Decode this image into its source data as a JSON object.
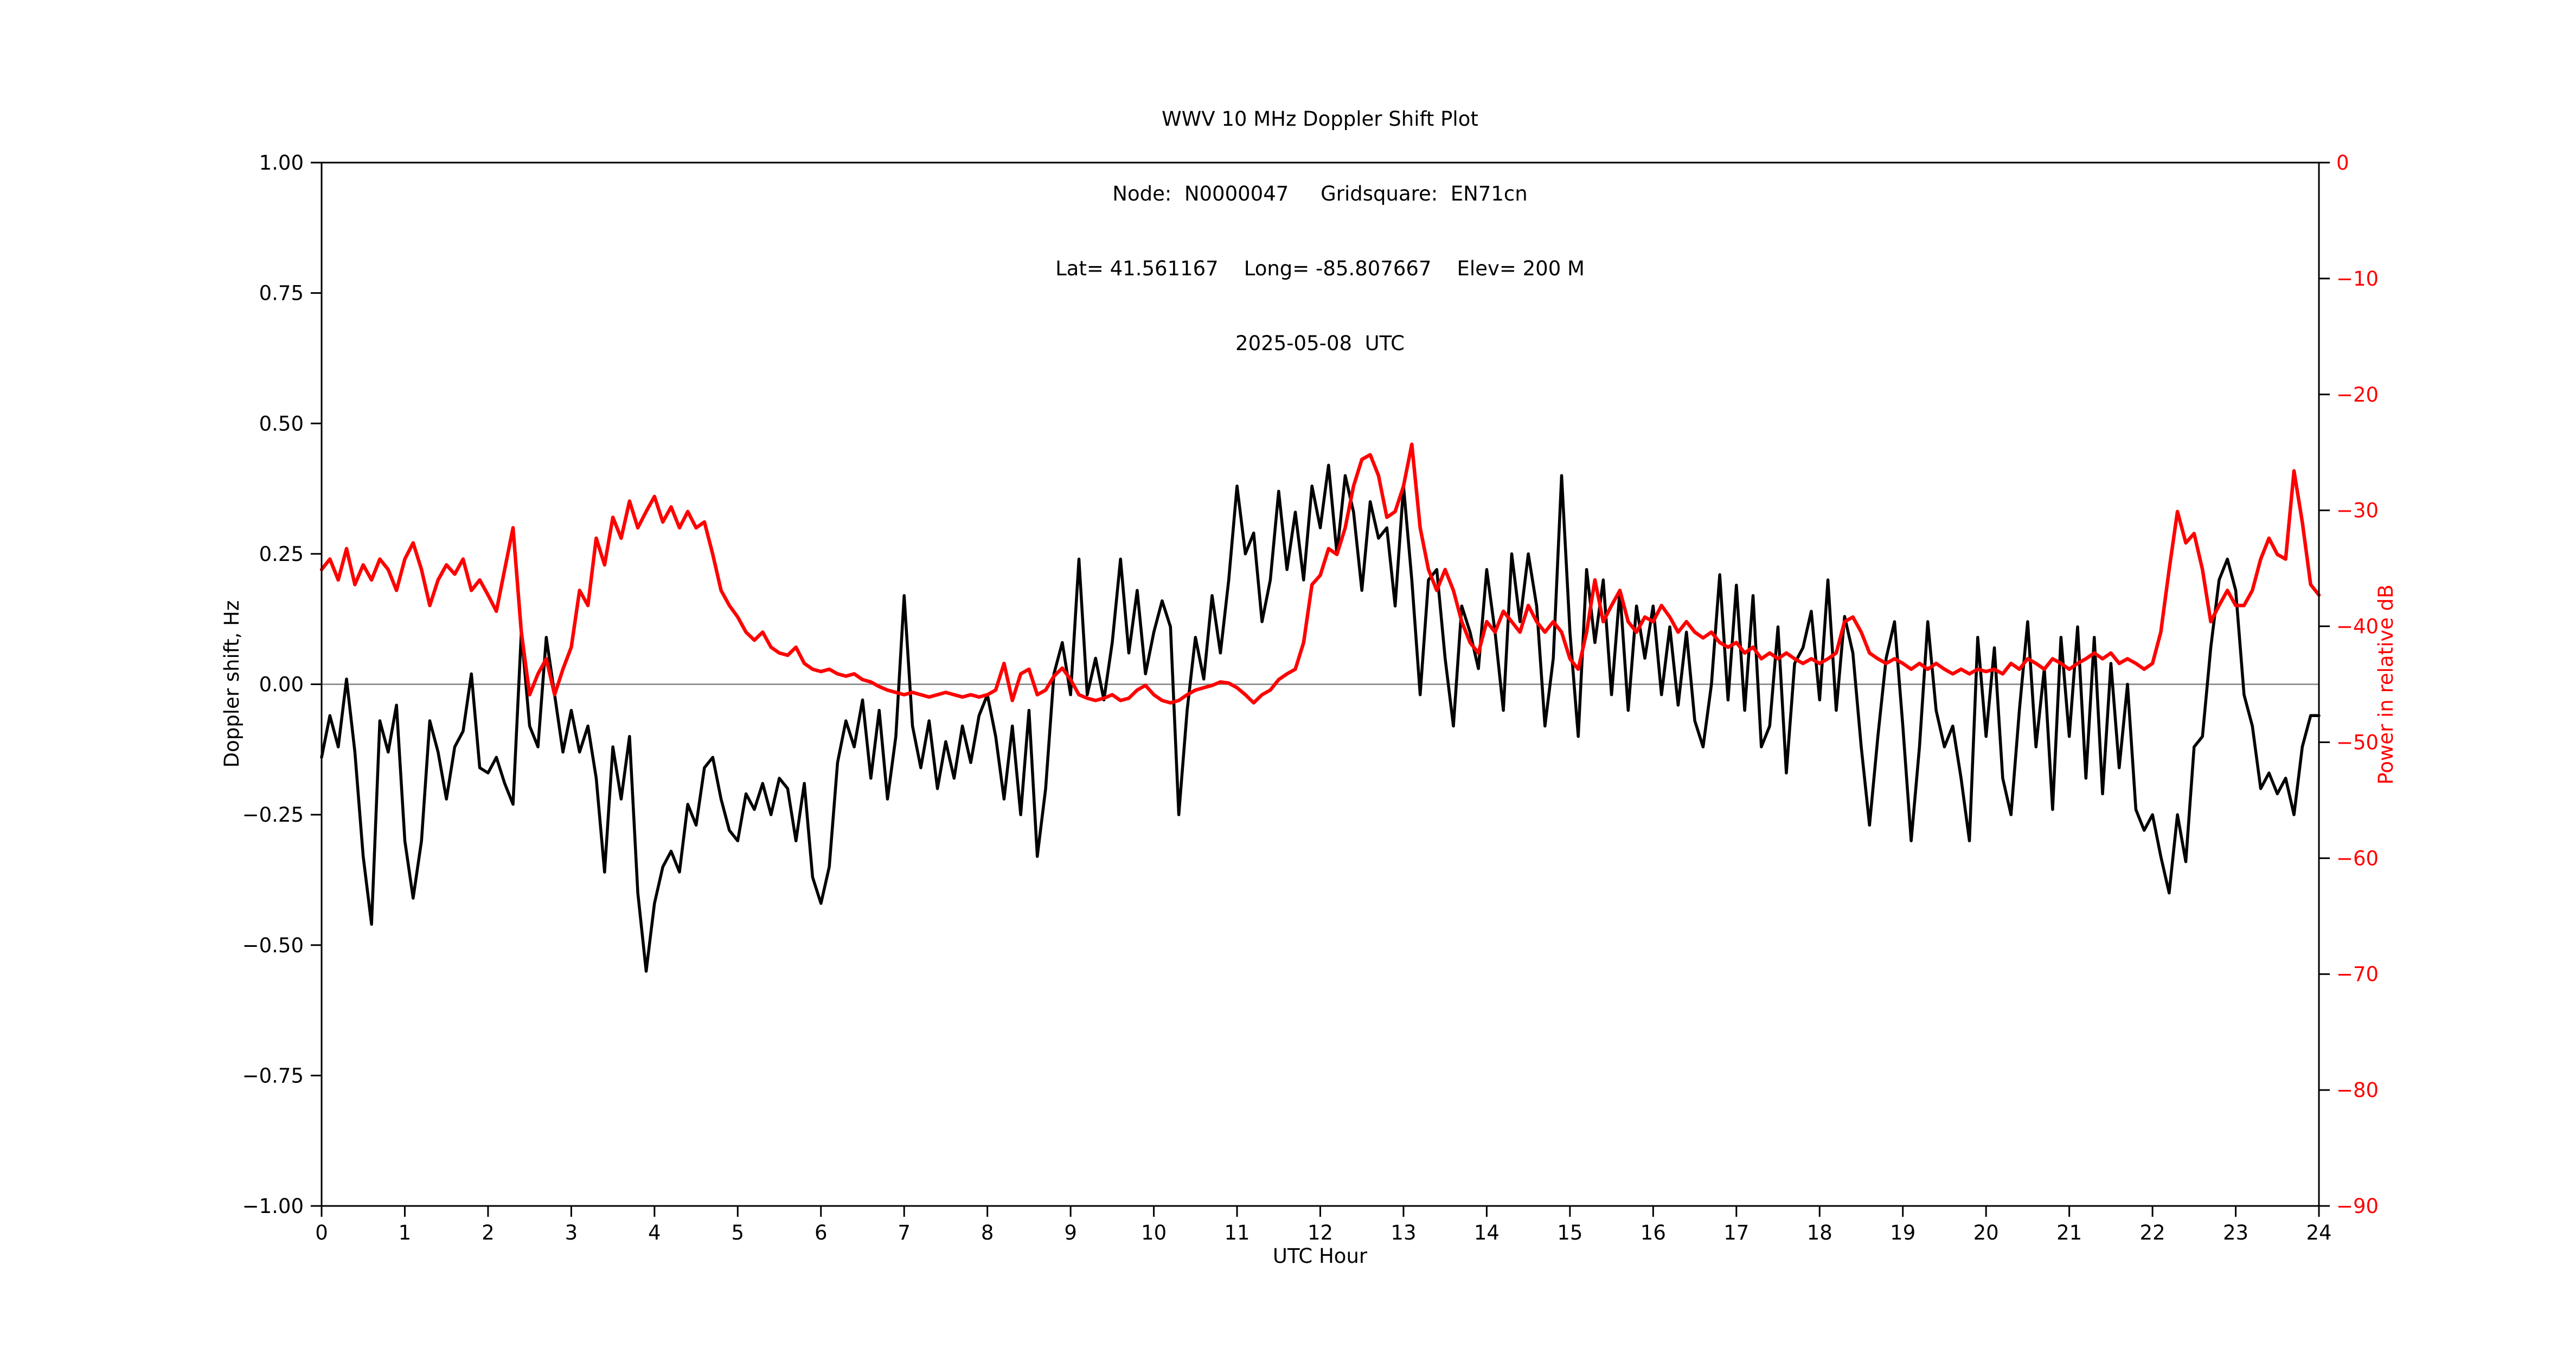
{
  "header": {
    "title": "WWV 10 MHz Doppler Shift Plot",
    "node_line": "Node:  N0000047     Gridsquare:  EN71cn",
    "location_line": "Lat= 41.561167    Long= -85.807667    Elev= 200 M",
    "date_line": "2025-05-08  UTC"
  },
  "colors": {
    "doppler_line": "#000000",
    "power_line": "#ff0000",
    "zero_line": "#808080",
    "axis": "#000000",
    "right_tick_label": "#ff0000",
    "background": "#ffffff"
  },
  "axes": {
    "x": {
      "label": "UTC Hour",
      "min": 0,
      "max": 24,
      "ticks": [
        0,
        1,
        2,
        3,
        4,
        5,
        6,
        7,
        8,
        9,
        10,
        11,
        12,
        13,
        14,
        15,
        16,
        17,
        18,
        19,
        20,
        21,
        22,
        23,
        24
      ],
      "tick_labels": [
        "0",
        "1",
        "2",
        "3",
        "4",
        "5",
        "6",
        "7",
        "8",
        "9",
        "10",
        "11",
        "12",
        "13",
        "14",
        "15",
        "16",
        "17",
        "18",
        "19",
        "20",
        "21",
        "22",
        "23",
        "24"
      ]
    },
    "y_left": {
      "label": "Doppler shift, Hz",
      "min": -1.0,
      "max": 1.0,
      "ticks": [
        1.0,
        0.75,
        0.5,
        0.25,
        0.0,
        -0.25,
        -0.5,
        -0.75,
        -1.0
      ],
      "tick_labels": [
        "1.00",
        "0.75",
        "0.50",
        "0.25",
        "0.00",
        "−0.25",
        "−0.50",
        "−0.75",
        "−1.00"
      ]
    },
    "y_right": {
      "label": "Power in relative dB",
      "min": -90,
      "max": 0,
      "ticks": [
        0,
        -10,
        -20,
        -30,
        -40,
        -50,
        -60,
        -70,
        -80,
        -90
      ],
      "tick_labels": [
        "0",
        "−10",
        "−20",
        "−30",
        "−40",
        "−50",
        "−60",
        "−70",
        "−80",
        "−90"
      ]
    }
  },
  "chart_data": {
    "type": "line",
    "title": "WWV 10 MHz Doppler Shift Plot",
    "xlabel": "UTC Hour",
    "xlim": [
      0,
      24
    ],
    "grid": "zero-line-only",
    "legend": "none",
    "x_hours_start": 0,
    "x_hours_step": 0.1,
    "series": [
      {
        "name": "Doppler shift",
        "axis": "left",
        "ylabel": "Doppler shift, Hz",
        "ylim": [
          -1.0,
          1.0
        ],
        "color": "#000000",
        "values": [
          -0.14,
          -0.06,
          -0.12,
          0.01,
          -0.13,
          -0.33,
          -0.46,
          -0.07,
          -0.13,
          -0.04,
          -0.3,
          -0.41,
          -0.3,
          -0.07,
          -0.13,
          -0.22,
          -0.12,
          -0.09,
          0.02,
          -0.16,
          -0.17,
          -0.14,
          -0.19,
          -0.23,
          0.1,
          -0.08,
          -0.12,
          0.09,
          -0.02,
          -0.13,
          -0.05,
          -0.13,
          -0.08,
          -0.18,
          -0.36,
          -0.12,
          -0.22,
          -0.1,
          -0.4,
          -0.55,
          -0.42,
          -0.35,
          -0.32,
          -0.36,
          -0.23,
          -0.27,
          -0.16,
          -0.14,
          -0.22,
          -0.28,
          -0.3,
          -0.21,
          -0.24,
          -0.19,
          -0.25,
          -0.18,
          -0.2,
          -0.3,
          -0.19,
          -0.37,
          -0.42,
          -0.35,
          -0.15,
          -0.07,
          -0.12,
          -0.03,
          -0.18,
          -0.05,
          -0.22,
          -0.1,
          0.17,
          -0.08,
          -0.16,
          -0.07,
          -0.2,
          -0.11,
          -0.18,
          -0.08,
          -0.15,
          -0.06,
          -0.02,
          -0.1,
          -0.22,
          -0.08,
          -0.25,
          -0.05,
          -0.33,
          -0.2,
          0.02,
          0.08,
          -0.02,
          0.24,
          -0.02,
          0.05,
          -0.03,
          0.08,
          0.24,
          0.06,
          0.18,
          0.02,
          0.1,
          0.16,
          0.11,
          -0.25,
          -0.05,
          0.09,
          0.01,
          0.17,
          0.06,
          0.2,
          0.38,
          0.25,
          0.29,
          0.12,
          0.2,
          0.37,
          0.22,
          0.33,
          0.2,
          0.38,
          0.3,
          0.42,
          0.25,
          0.4,
          0.33,
          0.18,
          0.35,
          0.28,
          0.3,
          0.15,
          0.38,
          0.2,
          -0.02,
          0.2,
          0.22,
          0.05,
          -0.08,
          0.15,
          0.1,
          0.03,
          0.22,
          0.1,
          -0.05,
          0.25,
          0.12,
          0.25,
          0.15,
          -0.08,
          0.05,
          0.4,
          0.1,
          -0.1,
          0.22,
          0.08,
          0.2,
          -0.02,
          0.18,
          -0.05,
          0.15,
          0.05,
          0.15,
          -0.02,
          0.11,
          -0.04,
          0.1,
          -0.07,
          -0.12,
          0.0,
          0.21,
          -0.03,
          0.19,
          -0.05,
          0.17,
          -0.12,
          -0.08,
          0.11,
          -0.17,
          0.04,
          0.07,
          0.14,
          -0.03,
          0.2,
          -0.05,
          0.13,
          0.06,
          -0.12,
          -0.27,
          -0.1,
          0.05,
          0.12,
          -0.08,
          -0.3,
          -0.12,
          0.12,
          -0.05,
          -0.12,
          -0.08,
          -0.18,
          -0.3,
          0.09,
          -0.1,
          0.07,
          -0.18,
          -0.25,
          -0.05,
          0.12,
          -0.12,
          0.03,
          -0.24,
          0.09,
          -0.1,
          0.11,
          -0.18,
          0.09,
          -0.21,
          0.04,
          -0.16,
          0.0,
          -0.24,
          -0.28,
          -0.25,
          -0.33,
          -0.4,
          -0.25,
          -0.34,
          -0.12,
          -0.1,
          0.07,
          0.2,
          0.24,
          0.18,
          -0.02,
          -0.08,
          -0.2,
          -0.17,
          -0.21,
          -0.18,
          -0.25,
          -0.12,
          -0.06,
          -0.06
        ]
      },
      {
        "name": "Power",
        "axis": "right",
        "ylabel": "Power in relative dB",
        "ylim": [
          -90,
          0
        ],
        "color": "#ff0000",
        "values": [
          -35.1,
          -34.2,
          -36.0,
          -33.3,
          -36.4,
          -34.7,
          -36.0,
          -34.2,
          -35.1,
          -36.9,
          -34.2,
          -32.8,
          -35.1,
          -38.2,
          -36.0,
          -34.7,
          -35.5,
          -34.2,
          -36.9,
          -36.0,
          -37.3,
          -38.7,
          -35.1,
          -31.5,
          -40.5,
          -45.9,
          -44.1,
          -42.8,
          -45.9,
          -43.7,
          -41.8,
          -36.9,
          -38.2,
          -32.4,
          -34.7,
          -30.6,
          -32.4,
          -29.2,
          -31.5,
          -30.1,
          -28.8,
          -31.0,
          -29.7,
          -31.5,
          -30.1,
          -31.5,
          -31.0,
          -33.8,
          -36.9,
          -38.2,
          -39.2,
          -40.5,
          -41.2,
          -40.5,
          -41.8,
          -42.3,
          -42.5,
          -41.8,
          -43.2,
          -43.7,
          -43.9,
          -43.7,
          -44.1,
          -44.3,
          -44.1,
          -44.6,
          -44.8,
          -45.2,
          -45.5,
          -45.7,
          -45.9,
          -45.7,
          -45.9,
          -46.1,
          -45.9,
          -45.7,
          -45.9,
          -46.1,
          -45.9,
          -46.1,
          -45.9,
          -45.5,
          -43.2,
          -46.4,
          -44.1,
          -43.7,
          -45.9,
          -45.5,
          -44.3,
          -43.6,
          -44.6,
          -45.9,
          -46.2,
          -46.4,
          -46.2,
          -45.9,
          -46.4,
          -46.2,
          -45.5,
          -45.1,
          -45.9,
          -46.4,
          -46.6,
          -46.4,
          -45.9,
          -45.5,
          -45.3,
          -45.1,
          -44.8,
          -44.9,
          -45.3,
          -45.9,
          -46.6,
          -45.9,
          -45.5,
          -44.6,
          -44.1,
          -43.7,
          -41.4,
          -36.4,
          -35.6,
          -33.3,
          -33.8,
          -31.5,
          -27.9,
          -25.6,
          -25.2,
          -27.0,
          -30.6,
          -30.1,
          -27.9,
          -24.3,
          -31.5,
          -35.1,
          -36.9,
          -35.1,
          -36.9,
          -39.6,
          -41.4,
          -42.3,
          -39.6,
          -40.5,
          -38.7,
          -39.6,
          -40.5,
          -38.2,
          -39.6,
          -40.5,
          -39.6,
          -40.5,
          -42.8,
          -43.7,
          -40.5,
          -36.0,
          -39.6,
          -38.2,
          -36.9,
          -39.6,
          -40.5,
          -39.2,
          -39.6,
          -38.2,
          -39.2,
          -40.5,
          -39.6,
          -40.5,
          -41.0,
          -40.5,
          -41.4,
          -41.8,
          -41.4,
          -42.3,
          -41.8,
          -42.8,
          -42.3,
          -42.8,
          -42.3,
          -42.8,
          -43.2,
          -42.8,
          -43.2,
          -42.8,
          -42.3,
          -39.6,
          -39.2,
          -40.5,
          -42.3,
          -42.8,
          -43.2,
          -42.8,
          -43.2,
          -43.7,
          -43.2,
          -43.7,
          -43.2,
          -43.7,
          -44.1,
          -43.7,
          -44.1,
          -43.7,
          -43.9,
          -43.7,
          -44.1,
          -43.2,
          -43.7,
          -42.8,
          -43.2,
          -43.7,
          -42.8,
          -43.2,
          -43.7,
          -43.2,
          -42.8,
          -42.3,
          -42.8,
          -42.3,
          -43.2,
          -42.8,
          -43.2,
          -43.7,
          -43.2,
          -40.5,
          -35.1,
          -30.1,
          -32.8,
          -32.0,
          -35.1,
          -39.6,
          -38.2,
          -36.9,
          -38.2,
          -38.2,
          -36.9,
          -34.2,
          -32.4,
          -33.8,
          -34.2,
          -26.6,
          -31.0,
          -36.4,
          -37.3
        ]
      }
    ]
  }
}
